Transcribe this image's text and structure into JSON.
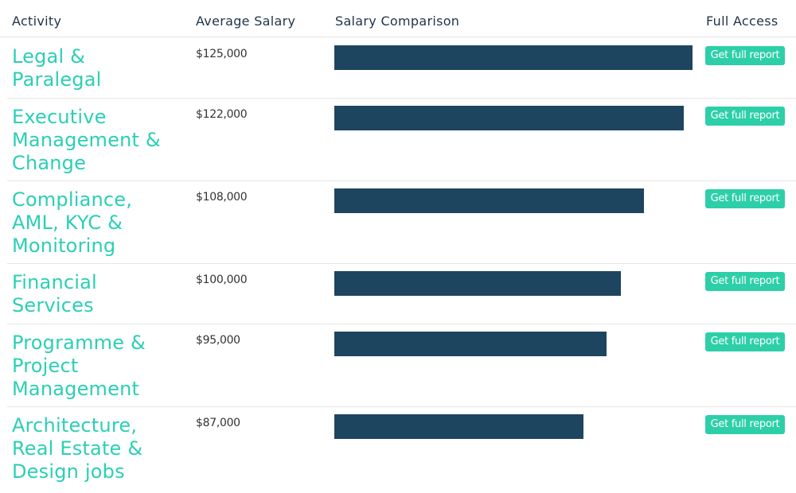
{
  "header": {
    "activity": "Activity",
    "average_salary": "Average Salary",
    "salary_comparison": "Salary Comparison",
    "full_access": "Full Access"
  },
  "accent_colors": {
    "activity_text": "#2bcfb5",
    "bar": "#1e4560",
    "button": "#2dcfa8"
  },
  "rows": [
    {
      "activity": "Legal & Paralegal",
      "salary": "$125,000",
      "salary_value": 125000,
      "button": "Get full report"
    },
    {
      "activity": "Executive Management & Change",
      "salary": "$122,000",
      "salary_value": 122000,
      "button": "Get full report"
    },
    {
      "activity": "Compliance, AML, KYC & Monitoring",
      "salary": "$108,000",
      "salary_value": 108000,
      "button": "Get full report"
    },
    {
      "activity": "Financial Services",
      "salary": "$100,000",
      "salary_value": 100000,
      "button": "Get full report"
    },
    {
      "activity": "Programme & Project Management",
      "salary": "$95,000",
      "salary_value": 95000,
      "button": "Get full report"
    },
    {
      "activity": "Architecture, Real Estate & Design jobs",
      "salary": "$87,000",
      "salary_value": 87000,
      "button": "Get full report"
    }
  ]
}
